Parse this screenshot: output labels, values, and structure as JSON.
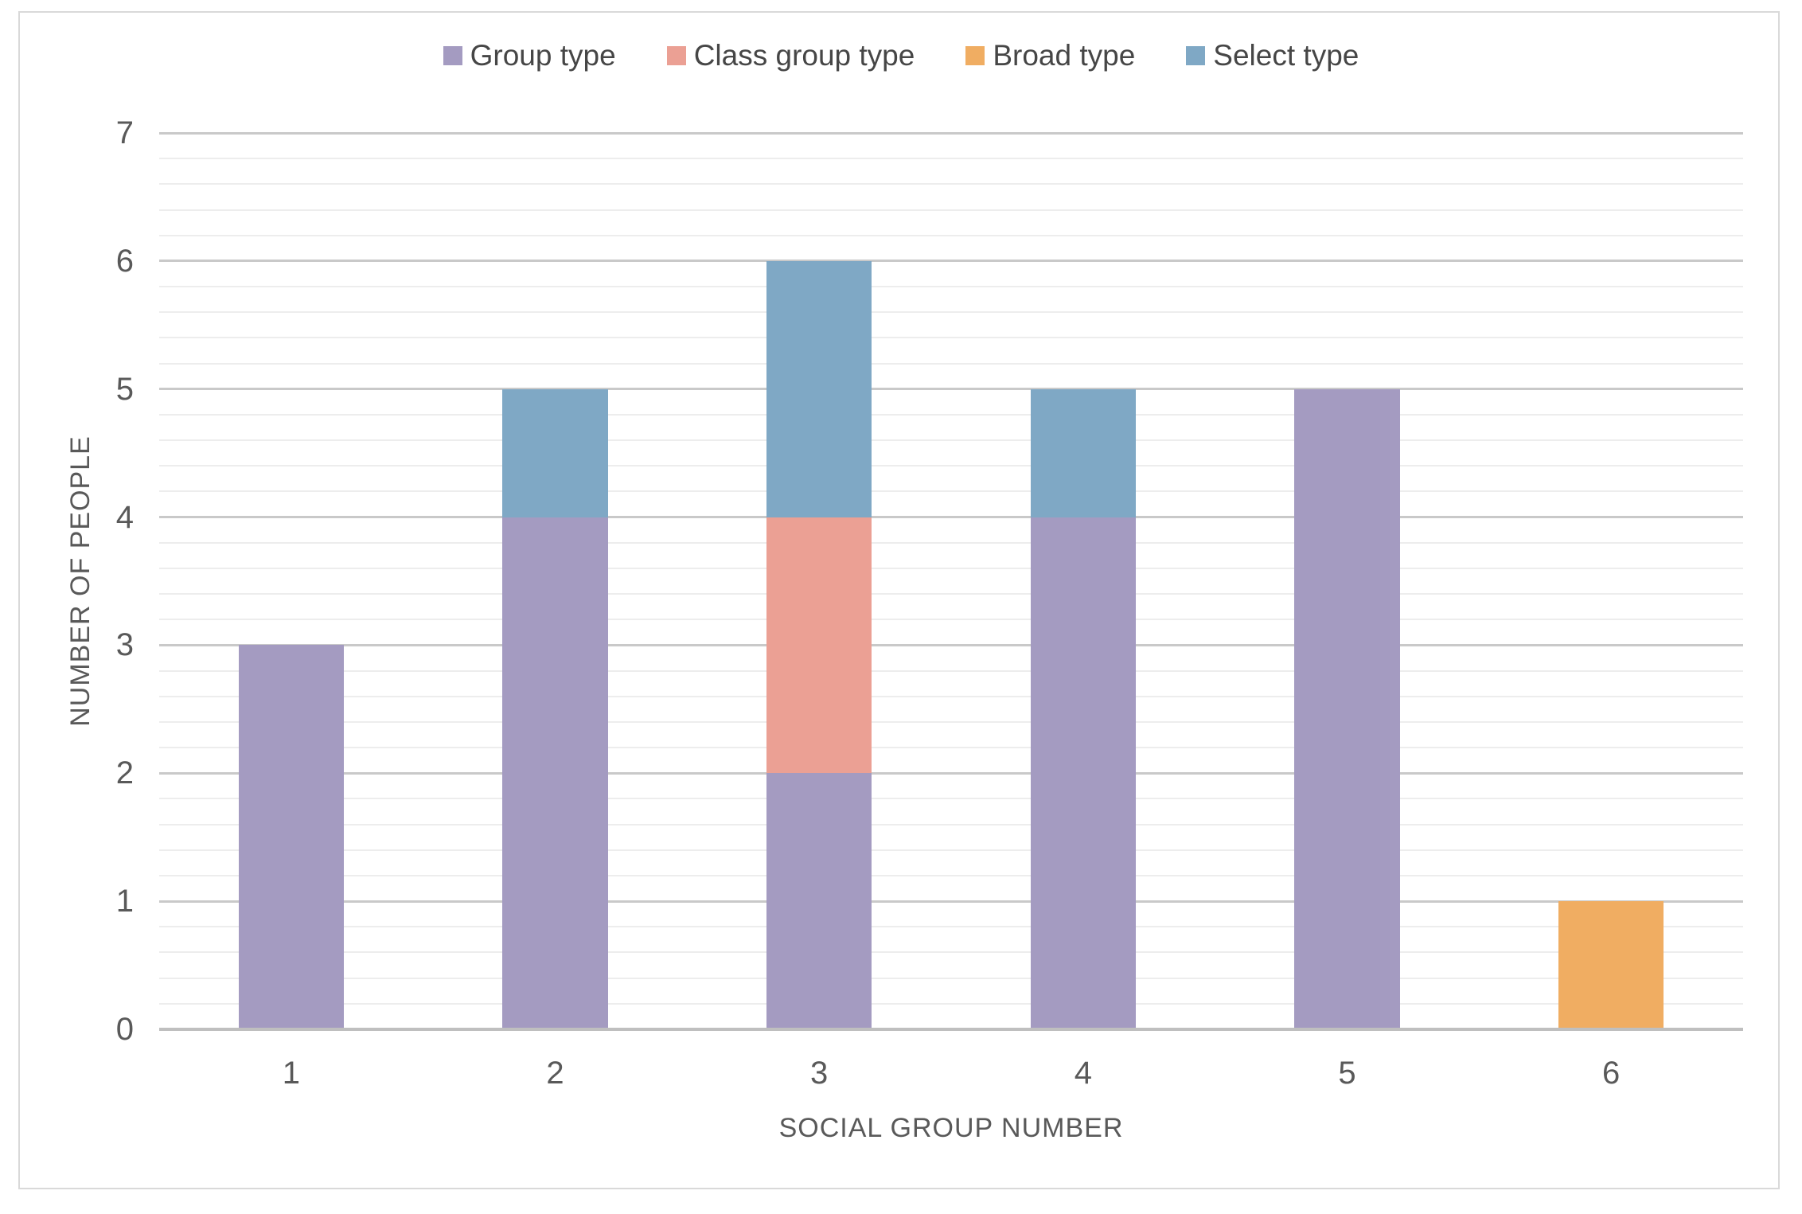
{
  "chart_data": {
    "type": "bar",
    "stacked": true,
    "title": "",
    "xlabel": "SOCIAL GROUP NUMBER",
    "ylabel": "NUMBER OF PEOPLE",
    "categories": [
      "1",
      "2",
      "3",
      "4",
      "5",
      "6"
    ],
    "series": [
      {
        "name": "Group type",
        "color": "#a49bc1",
        "values": [
          3,
          4,
          2,
          4,
          5,
          0
        ]
      },
      {
        "name": "Class group type",
        "color": "#eba094",
        "values": [
          0,
          0,
          2,
          0,
          0,
          0
        ]
      },
      {
        "name": "Broad type",
        "color": "#f0ad62",
        "values": [
          0,
          0,
          0,
          0,
          0,
          1
        ]
      },
      {
        "name": "Select type",
        "color": "#7fa8c5",
        "values": [
          0,
          1,
          2,
          1,
          0,
          0
        ]
      }
    ],
    "totals": [
      3,
      5,
      6,
      5,
      5,
      1
    ],
    "ylim": [
      0,
      7
    ],
    "y_major_unit": 1,
    "y_minor_unit": 0.2,
    "y_tick_labels": [
      "0",
      "1",
      "2",
      "3",
      "4",
      "5",
      "6",
      "7"
    ],
    "grid": true,
    "legend_position": "top"
  },
  "colors": {
    "background": "#ffffff",
    "border": "#d9d9d9",
    "gridline_major": "#c9c9c9",
    "gridline_minor": "#ededed",
    "axis_line": "#bfbfbf",
    "tick_text": "#595959",
    "legend_text": "#464646"
  }
}
